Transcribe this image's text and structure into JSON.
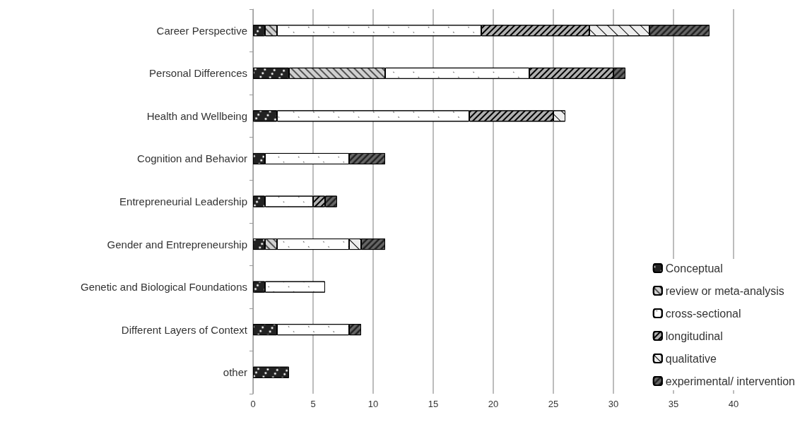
{
  "chart_data": {
    "type": "bar",
    "orientation": "horizontal",
    "stacked": true,
    "categories": [
      "Career Perspective",
      "Personal Differences",
      "Health and Wellbeing",
      "Cognition and Behavior",
      "Entrepreneurial Leadership",
      "Gender and Entrepreneurship",
      "Genetic and Biological Foundations",
      "Different Layers of Context",
      "other"
    ],
    "series": [
      {
        "name": "Conceptual",
        "color": "#222222",
        "values": [
          1,
          3,
          2,
          1,
          1,
          1,
          1,
          2,
          3
        ]
      },
      {
        "name": "review or meta-analysis",
        "color": "#d0d0d0",
        "values": [
          1,
          8,
          0,
          0,
          0,
          1,
          0,
          0,
          0
        ]
      },
      {
        "name": "cross-sectional",
        "color": "#ffffff",
        "values": [
          17,
          12,
          16,
          7,
          4,
          6,
          5,
          6,
          0
        ]
      },
      {
        "name": "longitudinal",
        "color": "#b0b0b0",
        "values": [
          9,
          7,
          7,
          0,
          1,
          0,
          0,
          0,
          0
        ]
      },
      {
        "name": "qualitative",
        "color": "#eeeeee",
        "values": [
          5,
          0,
          1,
          0,
          0,
          1,
          0,
          0,
          0
        ]
      },
      {
        "name": "experimental/ intervention",
        "color": "#666666",
        "values": [
          5,
          1,
          0,
          3,
          1,
          2,
          0,
          1,
          0
        ]
      }
    ],
    "xlim": [
      0,
      40
    ],
    "xticks": [
      0,
      5,
      10,
      15,
      20,
      25,
      30,
      35,
      40
    ],
    "grid": "x",
    "legend": "bottom right"
  }
}
